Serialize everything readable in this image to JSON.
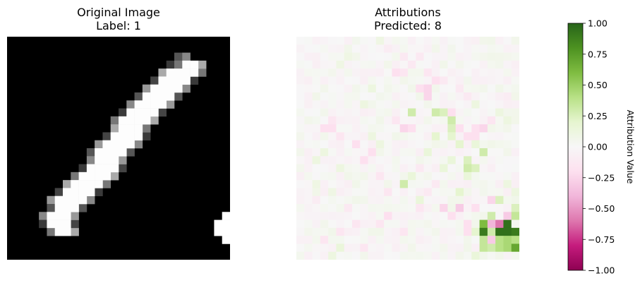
{
  "panels": {
    "left": {
      "title": "Original Image",
      "subtitle": "Label: 1"
    },
    "right": {
      "title": "Attributions",
      "subtitle": "Predicted: 8"
    }
  },
  "chart_data": [
    {
      "type": "heatmap",
      "name": "original",
      "title": "Original Image",
      "subtitle": "Label: 1",
      "grid": false,
      "axis": "off",
      "colormap": "gray",
      "rows": 28,
      "cols": 28,
      "stroke": [
        [
          3,
          22
        ],
        [
          3,
          23
        ],
        [
          4,
          20
        ],
        [
          4,
          21
        ],
        [
          4,
          22
        ],
        [
          4,
          23
        ],
        [
          5,
          19
        ],
        [
          5,
          20
        ],
        [
          5,
          21
        ],
        [
          5,
          22
        ],
        [
          6,
          18
        ],
        [
          6,
          19
        ],
        [
          6,
          20
        ],
        [
          6,
          21
        ],
        [
          7,
          17
        ],
        [
          7,
          18
        ],
        [
          7,
          19
        ],
        [
          7,
          20
        ],
        [
          8,
          16
        ],
        [
          8,
          17
        ],
        [
          8,
          18
        ],
        [
          8,
          19
        ],
        [
          9,
          15
        ],
        [
          9,
          16
        ],
        [
          9,
          17
        ],
        [
          9,
          18
        ],
        [
          10,
          14
        ],
        [
          10,
          15
        ],
        [
          10,
          16
        ],
        [
          10,
          17
        ],
        [
          11,
          14
        ],
        [
          11,
          15
        ],
        [
          11,
          16
        ],
        [
          12,
          13
        ],
        [
          12,
          14
        ],
        [
          12,
          15
        ],
        [
          12,
          16
        ],
        [
          13,
          12
        ],
        [
          13,
          13
        ],
        [
          13,
          14
        ],
        [
          13,
          15
        ],
        [
          14,
          11
        ],
        [
          14,
          12
        ],
        [
          14,
          13
        ],
        [
          14,
          14
        ],
        [
          15,
          11
        ],
        [
          15,
          12
        ],
        [
          15,
          13
        ],
        [
          16,
          10
        ],
        [
          16,
          11
        ],
        [
          16,
          12
        ],
        [
          16,
          13
        ],
        [
          17,
          9
        ],
        [
          17,
          10
        ],
        [
          17,
          11
        ],
        [
          17,
          12
        ],
        [
          18,
          8
        ],
        [
          18,
          9
        ],
        [
          18,
          10
        ],
        [
          18,
          11
        ],
        [
          19,
          7
        ],
        [
          19,
          8
        ],
        [
          19,
          9
        ],
        [
          19,
          10
        ],
        [
          20,
          6
        ],
        [
          20,
          7
        ],
        [
          20,
          8
        ],
        [
          20,
          9
        ],
        [
          21,
          6
        ],
        [
          21,
          7
        ],
        [
          21,
          8
        ],
        [
          22,
          5
        ],
        [
          22,
          6
        ],
        [
          22,
          7
        ],
        [
          23,
          5
        ],
        [
          23,
          6
        ],
        [
          23,
          7
        ],
        [
          24,
          6
        ],
        [
          24,
          7
        ]
      ],
      "edge": [
        [
          2,
          21
        ],
        [
          2,
          22
        ],
        [
          3,
          20
        ],
        [
          3,
          21
        ],
        [
          4,
          19
        ],
        [
          5,
          18
        ],
        [
          6,
          17
        ],
        [
          7,
          16
        ],
        [
          8,
          15
        ],
        [
          9,
          14
        ],
        [
          10,
          13
        ],
        [
          11,
          13
        ],
        [
          12,
          12
        ],
        [
          13,
          11
        ],
        [
          14,
          10
        ],
        [
          15,
          10
        ],
        [
          16,
          9
        ],
        [
          17,
          8
        ],
        [
          18,
          7
        ],
        [
          19,
          6
        ],
        [
          20,
          5
        ],
        [
          21,
          5
        ],
        [
          22,
          4
        ],
        [
          23,
          4
        ],
        [
          24,
          5
        ],
        [
          24,
          8
        ],
        [
          23,
          8
        ],
        [
          22,
          8
        ],
        [
          21,
          9
        ],
        [
          20,
          10
        ],
        [
          19,
          11
        ],
        [
          18,
          12
        ],
        [
          17,
          13
        ],
        [
          16,
          14
        ],
        [
          15,
          14
        ],
        [
          14,
          15
        ],
        [
          13,
          16
        ],
        [
          12,
          17
        ],
        [
          11,
          17
        ],
        [
          10,
          18
        ],
        [
          9,
          19
        ],
        [
          8,
          20
        ],
        [
          7,
          21
        ],
        [
          6,
          22
        ],
        [
          5,
          23
        ],
        [
          4,
          24
        ],
        [
          3,
          24
        ]
      ],
      "bright_corner": [
        [
          22,
          27
        ],
        [
          23,
          26
        ],
        [
          23,
          27
        ],
        [
          24,
          26
        ],
        [
          24,
          27
        ],
        [
          25,
          27
        ]
      ]
    },
    {
      "type": "heatmap",
      "name": "attributions",
      "title": "Attributions",
      "subtitle": "Predicted: 8",
      "grid": false,
      "axis": "off",
      "colormap": "PiYG",
      "rows": 28,
      "cols": 28,
      "vmin": -1.0,
      "vmax": 1.0,
      "strong": [
        {
          "r": 21,
          "c": 27,
          "v": 0.25
        },
        {
          "r": 22,
          "c": 26,
          "v": -0.3
        },
        {
          "r": 22,
          "c": 27,
          "v": 0.35
        },
        {
          "r": 22,
          "c": 24,
          "v": 0.3
        },
        {
          "r": 23,
          "c": 23,
          "v": 0.6
        },
        {
          "r": 23,
          "c": 24,
          "v": -0.4
        },
        {
          "r": 23,
          "c": 25,
          "v": -0.6
        },
        {
          "r": 23,
          "c": 26,
          "v": 0.95
        },
        {
          "r": 24,
          "c": 23,
          "v": 0.9
        },
        {
          "r": 24,
          "c": 24,
          "v": 0.3
        },
        {
          "r": 24,
          "c": 25,
          "v": 0.95
        },
        {
          "r": 24,
          "c": 26,
          "v": 0.95
        },
        {
          "r": 24,
          "c": 27,
          "v": 0.9
        },
        {
          "r": 25,
          "c": 23,
          "v": 0.35
        },
        {
          "r": 25,
          "c": 24,
          "v": -0.3
        },
        {
          "r": 25,
          "c": 25,
          "v": 0.4
        },
        {
          "r": 25,
          "c": 26,
          "v": 0.45
        },
        {
          "r": 26,
          "c": 23,
          "v": 0.35
        },
        {
          "r": 26,
          "c": 24,
          "v": 0.3
        },
        {
          "r": 26,
          "c": 25,
          "v": 0.4
        },
        {
          "r": 26,
          "c": 26,
          "v": 0.45
        },
        {
          "r": 26,
          "c": 27,
          "v": 0.7
        },
        {
          "r": 25,
          "c": 27,
          "v": 0.4
        },
        {
          "r": 27,
          "c": 22,
          "v": 0.15
        },
        {
          "r": 20,
          "c": 24,
          "v": -0.25
        },
        {
          "r": 20,
          "c": 25,
          "v": 0.25
        },
        {
          "r": 21,
          "c": 22,
          "v": -0.2
        },
        {
          "r": 21,
          "c": 20,
          "v": -0.3
        },
        {
          "r": 21,
          "c": 18,
          "v": -0.25
        },
        {
          "r": 22,
          "c": 19,
          "v": -0.2
        },
        {
          "r": 23,
          "c": 21,
          "v": -0.2
        },
        {
          "r": 24,
          "c": 22,
          "v": 0.2
        },
        {
          "r": 24,
          "c": 21,
          "v": -0.2
        },
        {
          "r": 19,
          "c": 20,
          "v": 0.2
        },
        {
          "r": 16,
          "c": 21,
          "v": 0.3
        },
        {
          "r": 16,
          "c": 22,
          "v": 0.25
        },
        {
          "r": 15,
          "c": 21,
          "v": 0.25
        },
        {
          "r": 14,
          "c": 23,
          "v": 0.3
        },
        {
          "r": 18,
          "c": 13,
          "v": 0.3
        },
        {
          "r": 9,
          "c": 17,
          "v": 0.3
        },
        {
          "r": 9,
          "c": 18,
          "v": 0.25
        },
        {
          "r": 10,
          "c": 19,
          "v": 0.3
        },
        {
          "r": 9,
          "c": 14,
          "v": 0.3
        },
        {
          "r": 9,
          "c": 19,
          "v": -0.2
        },
        {
          "r": 11,
          "c": 19,
          "v": 0.25
        },
        {
          "r": 12,
          "c": 19,
          "v": 0.2
        },
        {
          "r": 13,
          "c": 20,
          "v": 0.2
        },
        {
          "r": 12,
          "c": 17,
          "v": 0.2
        },
        {
          "r": 11,
          "c": 13,
          "v": -0.25
        },
        {
          "r": 11,
          "c": 14,
          "v": -0.2
        },
        {
          "r": 6,
          "c": 15,
          "v": -0.2
        },
        {
          "r": 6,
          "c": 16,
          "v": -0.25
        },
        {
          "r": 7,
          "c": 16,
          "v": -0.25
        },
        {
          "r": 5,
          "c": 17,
          "v": -0.2
        },
        {
          "r": 4,
          "c": 12,
          "v": -0.2
        },
        {
          "r": 4,
          "c": 13,
          "v": -0.15
        },
        {
          "r": 10,
          "c": 12,
          "v": -0.15
        },
        {
          "r": 11,
          "c": 20,
          "v": -0.2
        },
        {
          "r": 12,
          "c": 21,
          "v": -0.2
        },
        {
          "r": 12,
          "c": 22,
          "v": -0.2
        },
        {
          "r": 11,
          "c": 22,
          "v": -0.2
        },
        {
          "r": 11,
          "c": 23,
          "v": -0.25
        },
        {
          "r": 10,
          "c": 24,
          "v": -0.15
        },
        {
          "r": 13,
          "c": 7,
          "v": -0.2
        },
        {
          "r": 11,
          "c": 3,
          "v": -0.2
        },
        {
          "r": 11,
          "c": 4,
          "v": -0.2
        },
        {
          "r": 12,
          "c": 5,
          "v": -0.15
        },
        {
          "r": 10,
          "c": 4,
          "v": -0.15
        },
        {
          "r": 14,
          "c": 9,
          "v": -0.2
        },
        {
          "r": 15,
          "c": 8,
          "v": -0.2
        },
        {
          "r": 17,
          "c": 10,
          "v": -0.15
        },
        {
          "r": 19,
          "c": 11,
          "v": -0.15
        },
        {
          "r": 22,
          "c": 11,
          "v": -0.2
        },
        {
          "r": 23,
          "c": 10,
          "v": -0.15
        },
        {
          "r": 23,
          "c": 7,
          "v": -0.15
        },
        {
          "r": 24,
          "c": 5,
          "v": -0.15
        },
        {
          "r": 25,
          "c": 3,
          "v": -0.15
        },
        {
          "r": 26,
          "c": 5,
          "v": 0.15
        },
        {
          "r": 27,
          "c": 4,
          "v": 0.12
        },
        {
          "r": 26,
          "c": 8,
          "v": -0.15
        },
        {
          "r": 24,
          "c": 13,
          "v": -0.15
        },
        {
          "r": 21,
          "c": 15,
          "v": -0.15
        },
        {
          "r": 20,
          "c": 15,
          "v": 0.15
        },
        {
          "r": 17,
          "c": 14,
          "v": 0.15
        },
        {
          "r": 14,
          "c": 16,
          "v": 0.15
        },
        {
          "r": 15,
          "c": 19,
          "v": 0.15
        },
        {
          "r": 17,
          "c": 21,
          "v": 0.15
        },
        {
          "r": 16,
          "c": 18,
          "v": 0.15
        },
        {
          "r": 13,
          "c": 22,
          "v": 0.15
        },
        {
          "r": 13,
          "c": 10,
          "v": 0.12
        },
        {
          "r": 12,
          "c": 9,
          "v": 0.12
        },
        {
          "r": 14,
          "c": 3,
          "v": 0.12
        },
        {
          "r": 15,
          "c": 2,
          "v": 0.12
        },
        {
          "r": 16,
          "c": 5,
          "v": 0.12
        },
        {
          "r": 18,
          "c": 2,
          "v": 0.1
        },
        {
          "r": 19,
          "c": 4,
          "v": 0.1
        },
        {
          "r": 8,
          "c": 8,
          "v": 0.12
        },
        {
          "r": 6,
          "c": 9,
          "v": 0.12
        },
        {
          "r": 2,
          "c": 6,
          "v": 0.1
        },
        {
          "r": 3,
          "c": 5,
          "v": 0.1
        },
        {
          "r": 0,
          "c": 10,
          "v": 0.1
        },
        {
          "r": 1,
          "c": 11,
          "v": -0.1
        },
        {
          "r": 2,
          "c": 13,
          "v": -0.12
        },
        {
          "r": 3,
          "c": 14,
          "v": -0.12
        },
        {
          "r": 2,
          "c": 15,
          "v": -0.12
        },
        {
          "r": 4,
          "c": 16,
          "v": -0.15
        },
        {
          "r": 5,
          "c": 18,
          "v": -0.12
        },
        {
          "r": 6,
          "c": 20,
          "v": -0.12
        },
        {
          "r": 7,
          "c": 21,
          "v": -0.12
        },
        {
          "r": 8,
          "c": 22,
          "v": 0.12
        },
        {
          "r": 9,
          "c": 25,
          "v": 0.12
        },
        {
          "r": 10,
          "c": 26,
          "v": 0.12
        },
        {
          "r": 7,
          "c": 26,
          "v": -0.1
        },
        {
          "r": 18,
          "c": 26,
          "v": 0.12
        },
        {
          "r": 19,
          "c": 27,
          "v": 0.12
        },
        {
          "r": 20,
          "c": 2,
          "v": -0.1
        },
        {
          "r": 21,
          "c": 6,
          "v": -0.12
        },
        {
          "r": 16,
          "c": 15,
          "v": -0.12
        },
        {
          "r": 18,
          "c": 17,
          "v": -0.12
        },
        {
          "r": 19,
          "c": 16,
          "v": -0.12
        }
      ],
      "colorbar": {
        "label": "Attribution Value",
        "ticks": [
          1.0,
          0.75,
          0.5,
          0.25,
          0.0,
          -0.25,
          -0.5,
          -0.75,
          -1.0
        ],
        "tick_labels": [
          "1.00",
          "0.75",
          "0.50",
          "0.25",
          "0.00",
          "−0.25",
          "−0.50",
          "−0.75",
          "−1.00"
        ]
      }
    }
  ]
}
